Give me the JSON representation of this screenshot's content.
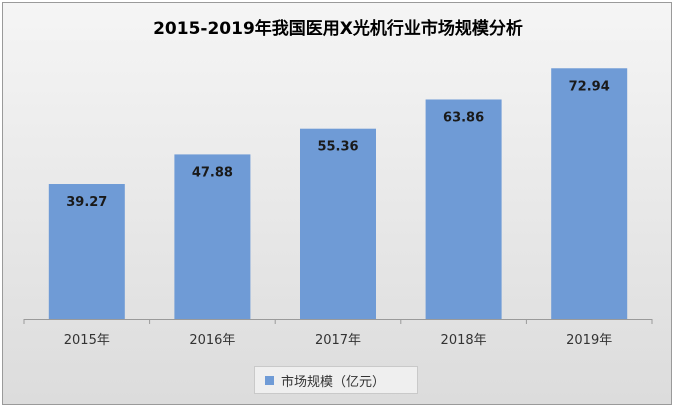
{
  "chart_data": {
    "type": "bar",
    "title": "2015-2019年我国医用X光机行业市场规模分析",
    "categories": [
      "2015年",
      "2016年",
      "2017年",
      "2018年",
      "2019年"
    ],
    "series": [
      {
        "name": "市场规模（亿元）",
        "values": [
          39.27,
          47.88,
          55.36,
          63.86,
          72.94
        ]
      }
    ],
    "data_labels": [
      "39.27",
      "47.88",
      "55.36",
      "63.86",
      "72.94"
    ],
    "ylim": [
      0,
      80
    ],
    "grid": false,
    "legend_position": "bottom",
    "bar_color": "#6f9bd6"
  }
}
